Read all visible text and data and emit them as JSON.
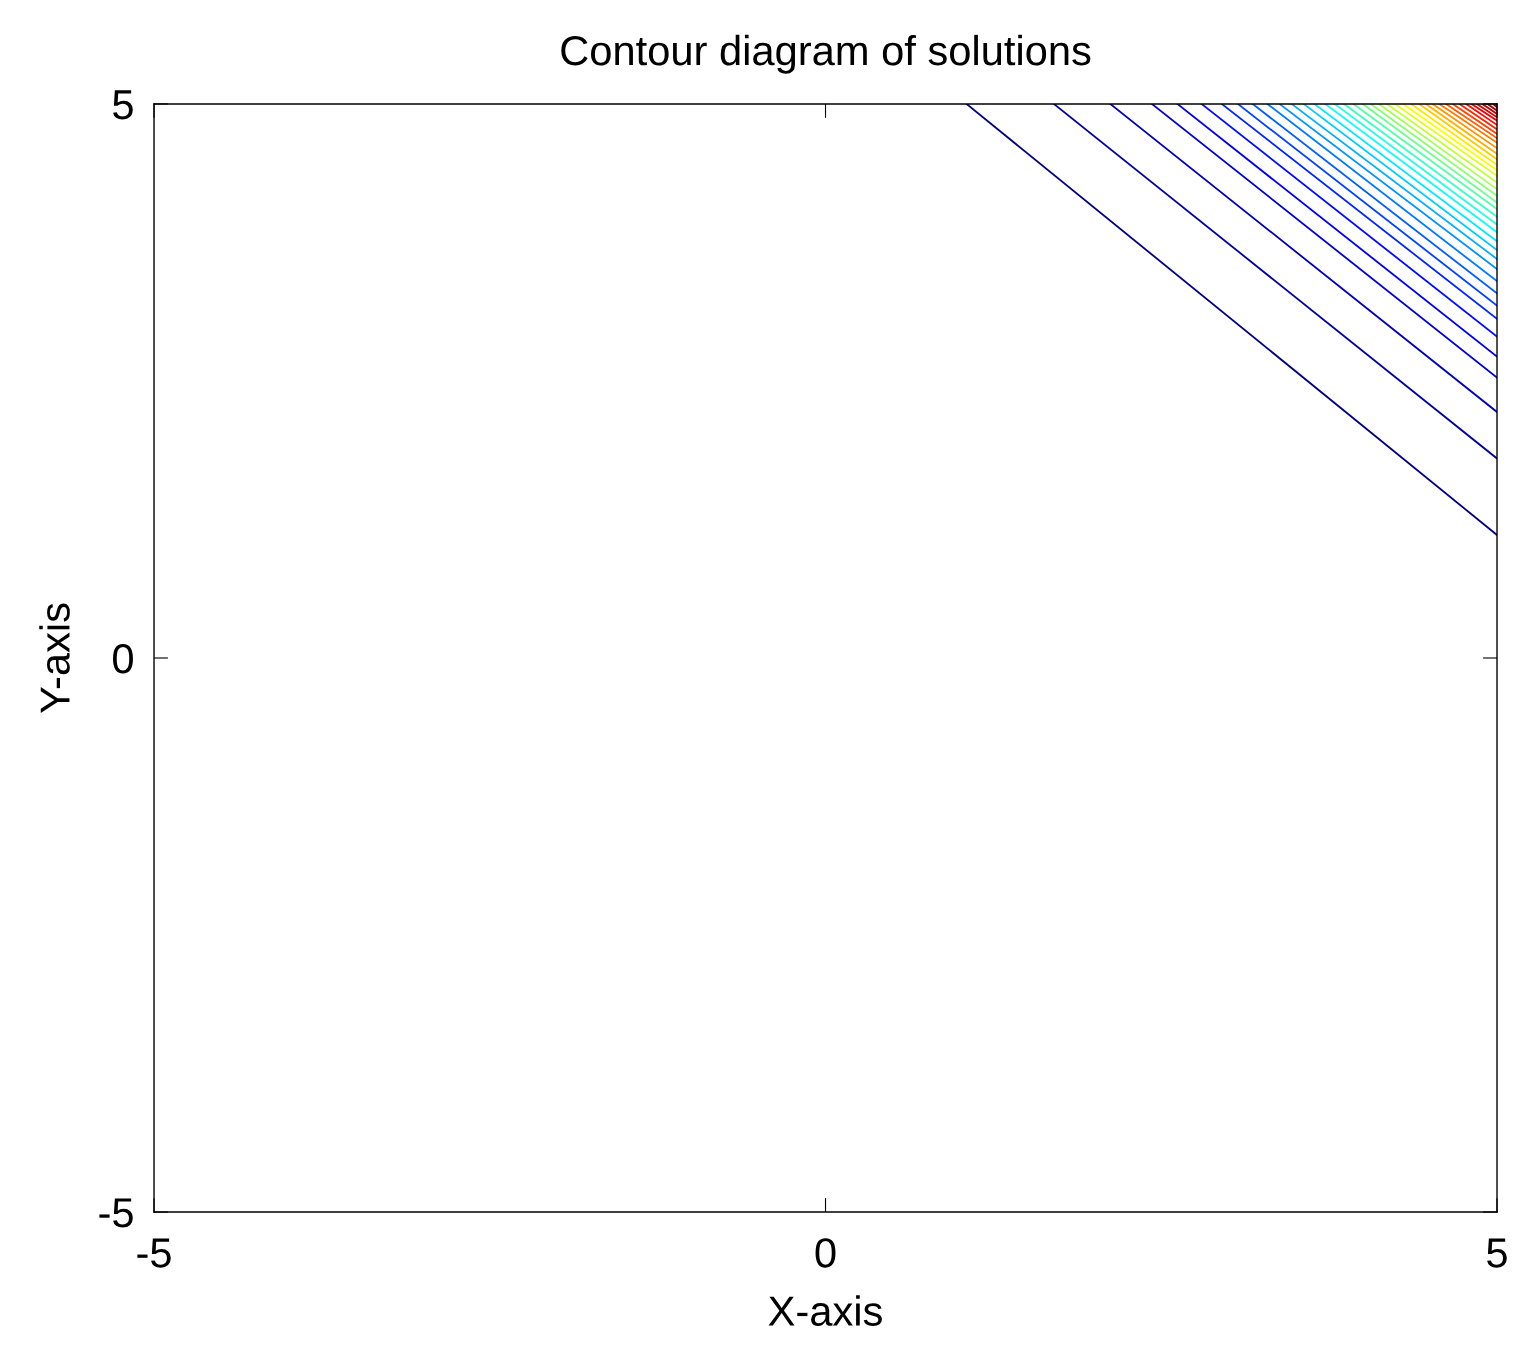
{
  "chart_data": {
    "type": "line",
    "title": "Contour diagram of solutions",
    "xlabel": "X-axis",
    "ylabel": "Y-axis",
    "xlim": [
      -5,
      5
    ],
    "ylim": [
      -5,
      5
    ],
    "xticks": [
      -5,
      0,
      5
    ],
    "yticks": [
      -5,
      0,
      5
    ],
    "grid": false,
    "marker": "none",
    "line_style": "solid",
    "series": [
      {
        "color": "#000080",
        "x": [
          1.05,
          5
        ],
        "values": [
          5,
          1.11
        ]
      },
      {
        "color": "#00009b",
        "x": [
          1.7,
          5
        ],
        "values": [
          5,
          1.8
        ]
      },
      {
        "color": "#0000b7",
        "x": [
          2.12,
          5
        ],
        "values": [
          5,
          2.22
        ]
      },
      {
        "color": "#0000d2",
        "x": [
          2.43,
          5
        ],
        "values": [
          5,
          2.53
        ]
      },
      {
        "color": "#0000ee",
        "x": [
          2.62,
          5
        ],
        "values": [
          5,
          2.72
        ]
      },
      {
        "color": "#000aff",
        "x": [
          2.8,
          5
        ],
        "values": [
          5,
          2.9
        ]
      },
      {
        "color": "#0026ff",
        "x": [
          2.95,
          5
        ],
        "values": [
          5,
          3.06
        ]
      },
      {
        "color": "#0042ff",
        "x": [
          3.07,
          5
        ],
        "values": [
          5,
          3.18
        ]
      },
      {
        "color": "#005dff",
        "x": [
          3.18,
          5
        ],
        "values": [
          5,
          3.29
        ]
      },
      {
        "color": "#0079ff",
        "x": [
          3.29,
          5
        ],
        "values": [
          5,
          3.4
        ]
      },
      {
        "color": "#0094ff",
        "x": [
          3.38,
          5
        ],
        "values": [
          5,
          3.51
        ]
      },
      {
        "color": "#00b0ff",
        "x": [
          3.47,
          5
        ],
        "values": [
          5,
          3.6
        ]
      },
      {
        "color": "#00cbff",
        "x": [
          3.56,
          5
        ],
        "values": [
          5,
          3.68
        ]
      },
      {
        "color": "#00e7ff",
        "x": [
          3.64,
          5
        ],
        "values": [
          5,
          3.76
        ]
      },
      {
        "color": "#04fffb",
        "x": [
          3.72,
          5
        ],
        "values": [
          5,
          3.84
        ]
      },
      {
        "color": "#1fffe0",
        "x": [
          3.79,
          5
        ],
        "values": [
          5,
          3.91
        ]
      },
      {
        "color": "#3affc4",
        "x": [
          3.86,
          5
        ],
        "values": [
          5,
          3.98
        ]
      },
      {
        "color": "#56ffa9",
        "x": [
          3.93,
          5
        ],
        "values": [
          5,
          4.05
        ]
      },
      {
        "color": "#71ff8d",
        "x": [
          4.0,
          5
        ],
        "values": [
          5,
          4.11
        ]
      },
      {
        "color": "#8dff71",
        "x": [
          4.06,
          5
        ],
        "values": [
          5,
          4.17
        ]
      },
      {
        "color": "#a9ff56",
        "x": [
          4.12,
          5
        ],
        "values": [
          5,
          4.23
        ]
      },
      {
        "color": "#c4ff3a",
        "x": [
          4.18,
          5
        ],
        "values": [
          5,
          4.29
        ]
      },
      {
        "color": "#e0ff1f",
        "x": [
          4.24,
          5
        ],
        "values": [
          5,
          4.35
        ]
      },
      {
        "color": "#fbff04",
        "x": [
          4.3,
          5
        ],
        "values": [
          5,
          4.4
        ]
      },
      {
        "color": "#ffe700",
        "x": [
          4.36,
          5
        ],
        "values": [
          5,
          4.45
        ]
      },
      {
        "color": "#ffcb00",
        "x": [
          4.42,
          5
        ],
        "values": [
          5,
          4.5
        ]
      },
      {
        "color": "#ffb000",
        "x": [
          4.47,
          5
        ],
        "values": [
          5,
          4.55
        ]
      },
      {
        "color": "#ff9400",
        "x": [
          4.52,
          5
        ],
        "values": [
          5,
          4.6
        ]
      },
      {
        "color": "#ff7900",
        "x": [
          4.57,
          5
        ],
        "values": [
          5,
          4.65
        ]
      },
      {
        "color": "#ff5d00",
        "x": [
          4.62,
          5
        ],
        "values": [
          5,
          4.69
        ]
      },
      {
        "color": "#ff4200",
        "x": [
          4.67,
          5
        ],
        "values": [
          5,
          4.73
        ]
      },
      {
        "color": "#ff2600",
        "x": [
          4.72,
          5
        ],
        "values": [
          5,
          4.77
        ]
      },
      {
        "color": "#ff0a00",
        "x": [
          4.77,
          5
        ],
        "values": [
          5,
          4.81
        ]
      },
      {
        "color": "#ee0000",
        "x": [
          4.81,
          5
        ],
        "values": [
          5,
          4.85
        ]
      },
      {
        "color": "#d20000",
        "x": [
          4.85,
          5
        ],
        "values": [
          5,
          4.88
        ]
      },
      {
        "color": "#b70000",
        "x": [
          4.89,
          5
        ],
        "values": [
          5,
          4.91
        ]
      },
      {
        "color": "#9b0000",
        "x": [
          4.93,
          5
        ],
        "values": [
          5,
          4.94
        ]
      },
      {
        "color": "#800000",
        "x": [
          4.97,
          5
        ],
        "values": [
          5,
          4.97
        ]
      }
    ]
  }
}
